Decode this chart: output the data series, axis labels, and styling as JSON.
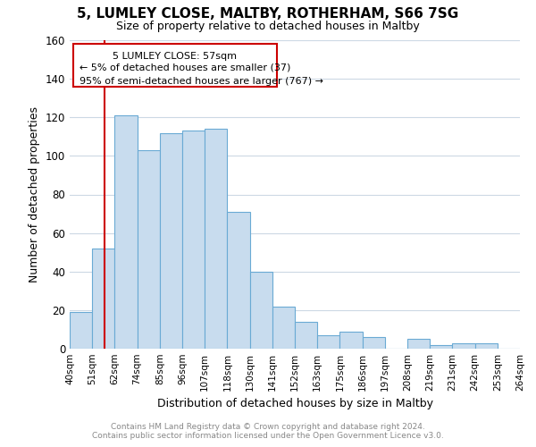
{
  "title_line1": "5, LUMLEY CLOSE, MALTBY, ROTHERHAM, S66 7SG",
  "title_line2": "Size of property relative to detached houses in Maltby",
  "xlabel": "Distribution of detached houses by size in Maltby",
  "ylabel": "Number of detached properties",
  "bar_color": "#c8dcee",
  "bar_edge_color": "#6aaad4",
  "bin_labels": [
    "40sqm",
    "51sqm",
    "62sqm",
    "74sqm",
    "85sqm",
    "96sqm",
    "107sqm",
    "118sqm",
    "130sqm",
    "141sqm",
    "152sqm",
    "163sqm",
    "175sqm",
    "186sqm",
    "197sqm",
    "208sqm",
    "219sqm",
    "231sqm",
    "242sqm",
    "253sqm",
    "264sqm"
  ],
  "bar_heights": [
    19,
    52,
    121,
    103,
    112,
    113,
    114,
    71,
    40,
    22,
    14,
    7,
    9,
    6,
    0,
    5,
    2,
    3,
    3,
    0
  ],
  "ylim": [
    0,
    160
  ],
  "yticks": [
    0,
    20,
    40,
    60,
    80,
    100,
    120,
    140,
    160
  ],
  "annotation_title": "5 LUMLEY CLOSE: 57sqm",
  "annotation_line2": "← 5% of detached houses are smaller (37)",
  "annotation_line3": "95% of semi-detached houses are larger (767) →",
  "footnote1": "Contains HM Land Registry data © Crown copyright and database right 2024.",
  "footnote2": "Contains public sector information licensed under the Open Government Licence v3.0.",
  "background_color": "#ffffff",
  "grid_color": "#ccd8e4",
  "annotation_box_color": "#ffffff",
  "annotation_box_edge_color": "#cc0000",
  "annotation_text_color": "#000000",
  "red_line_color": "#cc0000"
}
